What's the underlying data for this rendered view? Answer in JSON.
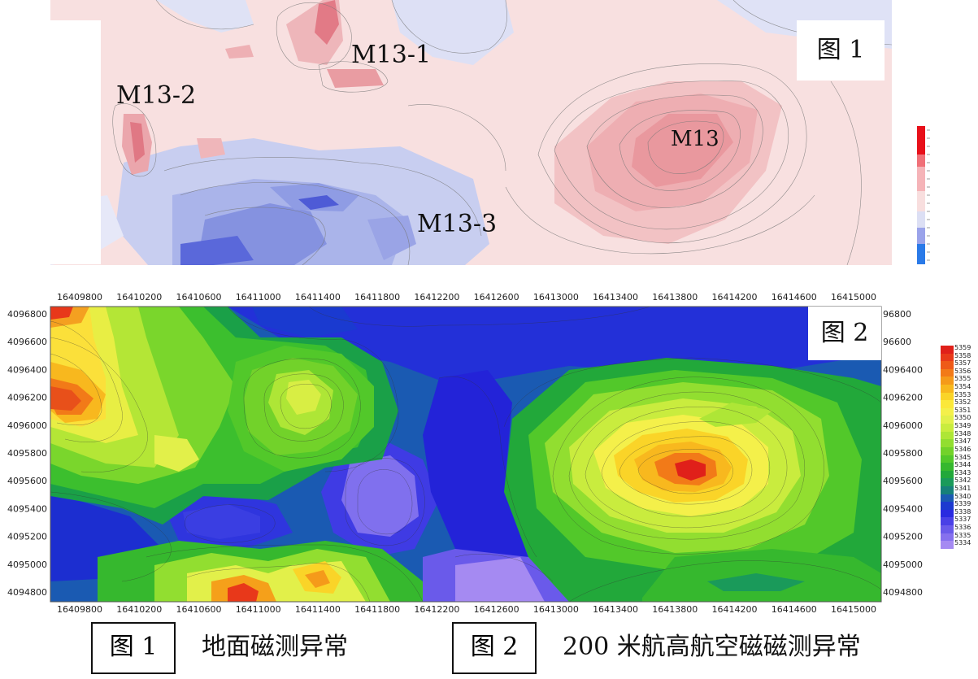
{
  "figure1": {
    "label": "图 1",
    "anomalies": [
      {
        "name": "M13-1"
      },
      {
        "name": "M13-2"
      },
      {
        "name": "M13"
      },
      {
        "name": "M13-3"
      }
    ],
    "colors": {
      "background": "#f6dada",
      "negative": "#9aa6e6",
      "strong_positive": "#e07a85",
      "strong_negative": "#4d5bd8"
    }
  },
  "figure2": {
    "label": "图 2",
    "x_ticks": [
      "16409800",
      "16410200",
      "16410600",
      "16411000",
      "16411400",
      "16411800",
      "16412200",
      "16412600",
      "16413000",
      "16413400",
      "16413800",
      "16414200",
      "16414600",
      "16415000"
    ],
    "y_ticks_left": [
      "4096800",
      "4096600",
      "4096400",
      "4096200",
      "4096000",
      "4095800",
      "4095600",
      "4095400",
      "4095200",
      "4095000",
      "4094800"
    ],
    "y_ticks_right": [
      "96800",
      "96600",
      "4096400",
      "4096200",
      "4096000",
      "4095800",
      "4095600",
      "4095400",
      "4095200",
      "4095000",
      "4094800"
    ],
    "legend_values": [
      "5359",
      "5358",
      "5357",
      "5356",
      "5355",
      "5354",
      "5353",
      "5352",
      "5351",
      "5350",
      "5349",
      "5348",
      "5347",
      "5346",
      "5345",
      "5344",
      "5343",
      "5342",
      "5341",
      "5340",
      "5339",
      "5338",
      "5337",
      "5336",
      "5335",
      "5334"
    ],
    "legend_colors": [
      "#e0201a",
      "#e83a1a",
      "#ee5a18",
      "#f27a18",
      "#f59a1a",
      "#f8b81e",
      "#fad428",
      "#fbe83a",
      "#f4f04a",
      "#e2f04a",
      "#c9ec3e",
      "#aee636",
      "#92de30",
      "#72d22a",
      "#52c82a",
      "#36b82e",
      "#22a83a",
      "#1a9a5a",
      "#16807a",
      "#1a5ab2",
      "#1c3ad0",
      "#2a2ae0",
      "#4a40e6",
      "#6a5aea",
      "#8670ee",
      "#a58af2"
    ]
  },
  "captions": {
    "box1": "图 1",
    "text1": "地面磁测异常",
    "box2": "图 2",
    "text2": "200 米航高航空磁磁测异常"
  }
}
